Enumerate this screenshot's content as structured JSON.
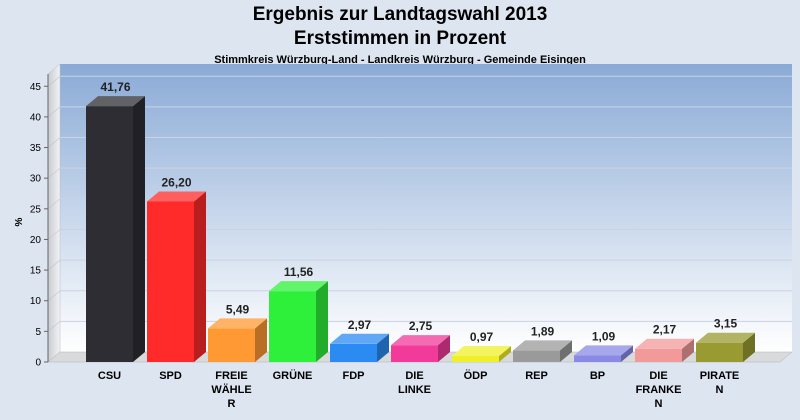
{
  "title": "Ergebnis zur Landtagswahl 2013",
  "subtitle": "Erststimmen in Prozent",
  "subtitle2": "Stimmkreis Würzburg-Land - Landkreis Würzburg - Gemeinde Eisingen",
  "chart_data": {
    "type": "bar",
    "title": "Ergebnis zur Landtagswahl 2013",
    "subtitle": "Erststimmen in Prozent",
    "ylabel": "%",
    "ylim": [
      0,
      47
    ],
    "yticks": [
      0,
      5,
      10,
      15,
      20,
      25,
      30,
      35,
      40,
      45
    ],
    "grid": true,
    "categories": [
      {
        "name": "CSU",
        "label_lines": [
          "CSU"
        ],
        "value": 41.76,
        "label": "41,76",
        "color": "#2d2d33"
      },
      {
        "name": "SPD",
        "label_lines": [
          "SPD"
        ],
        "value": 26.2,
        "label": "26,20",
        "color": "#ff2a2a"
      },
      {
        "name": "FREIE WÄHLER",
        "label_lines": [
          "FREIE",
          "WÄHLE",
          "R"
        ],
        "value": 5.49,
        "label": "5,49",
        "color": "#ff9933"
      },
      {
        "name": "GRÜNE",
        "label_lines": [
          "GRÜNE"
        ],
        "value": 11.56,
        "label": "11,56",
        "color": "#2ef03a"
      },
      {
        "name": "FDP",
        "label_lines": [
          "FDP"
        ],
        "value": 2.97,
        "label": "2,97",
        "color": "#2b8bf2"
      },
      {
        "name": "DIE LINKE",
        "label_lines": [
          "DIE",
          "LINKE"
        ],
        "value": 2.75,
        "label": "2,75",
        "color": "#f23a9a"
      },
      {
        "name": "ÖDP",
        "label_lines": [
          "ÖDP"
        ],
        "value": 0.97,
        "label": "0,97",
        "color": "#f0f02a"
      },
      {
        "name": "REP",
        "label_lines": [
          "REP"
        ],
        "value": 1.89,
        "label": "1,89",
        "color": "#9a9a9a"
      },
      {
        "name": "BP",
        "label_lines": [
          "BP"
        ],
        "value": 1.09,
        "label": "1,09",
        "color": "#8a8ae6"
      },
      {
        "name": "DIE FRANKEN",
        "label_lines": [
          "DIE",
          "FRANKE",
          "N"
        ],
        "value": 2.17,
        "label": "2,17",
        "color": "#f29a9a"
      },
      {
        "name": "PIRATEN",
        "label_lines": [
          "PIRATE",
          "N"
        ],
        "value": 3.15,
        "label": "3,15",
        "color": "#9a9a33"
      }
    ]
  }
}
